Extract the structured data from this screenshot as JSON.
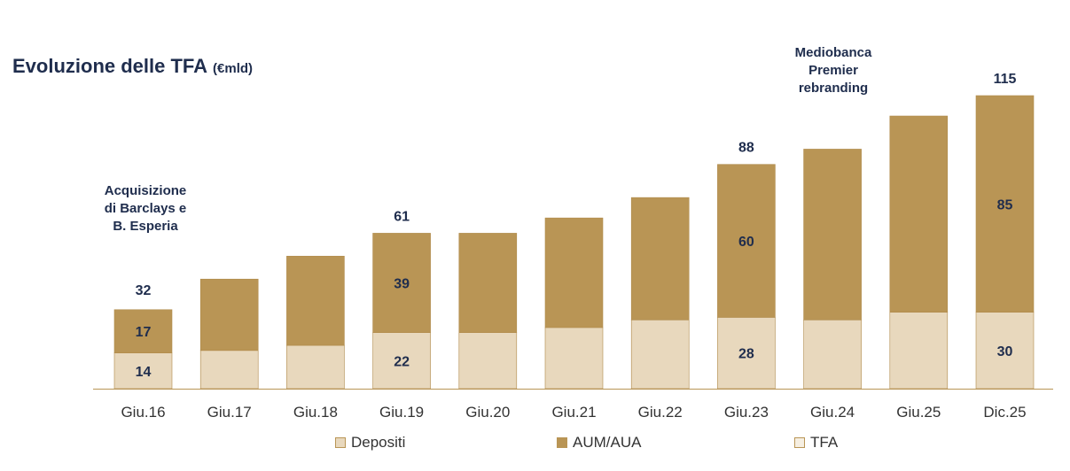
{
  "title": "Evoluzione delle TFA",
  "title_unit": "(€mld)",
  "annotations": {
    "acquisition": [
      "Acquisizione",
      "di Barclays e",
      "B. Esperia"
    ],
    "rebranding": [
      "Mediobanca",
      "Premier",
      "rebranding"
    ]
  },
  "colors": {
    "depositi": "#e8d8bd",
    "aum_aua": "#b99555",
    "tfa_swatch": "#f6efe2",
    "text": "#1f2d4d",
    "axis": "#b99555"
  },
  "legend": [
    {
      "label": "Depositi",
      "color": "#e8d8bd"
    },
    {
      "label": "AUM/AUA",
      "color": "#b99555"
    },
    {
      "label": "TFA",
      "color": "#f6efe2"
    }
  ],
  "chart_data": {
    "type": "bar",
    "stacked": true,
    "categories": [
      "Giu.16",
      "Giu.17",
      "Giu.18",
      "Giu.19",
      "Giu.20",
      "Giu.21",
      "Giu.22",
      "Giu.23",
      "Giu.24",
      "Giu.25",
      "Dic.25"
    ],
    "series": [
      {
        "name": "Depositi",
        "values": [
          14,
          15,
          17,
          22,
          22,
          24,
          27,
          28,
          27,
          30,
          30
        ],
        "labels": [
          "14",
          "",
          "",
          "22",
          "",
          "",
          "",
          "28",
          "",
          "",
          "30"
        ]
      },
      {
        "name": "AUM/AUA",
        "values": [
          17,
          28,
          35,
          39,
          39,
          43,
          48,
          60,
          67,
          77,
          85
        ],
        "labels": [
          "17",
          "",
          "",
          "39",
          "",
          "",
          "",
          "60",
          "",
          "",
          "85"
        ]
      }
    ],
    "totals": {
      "name": "TFA",
      "values": [
        32,
        43,
        52,
        61,
        62,
        67,
        75,
        88,
        94,
        107,
        115
      ],
      "labels": [
        "32",
        "",
        "",
        "61",
        "",
        "",
        "",
        "88",
        "",
        "",
        "115"
      ]
    },
    "ylim": [
      0,
      115
    ],
    "grid": false,
    "legend_position": "bottom"
  }
}
